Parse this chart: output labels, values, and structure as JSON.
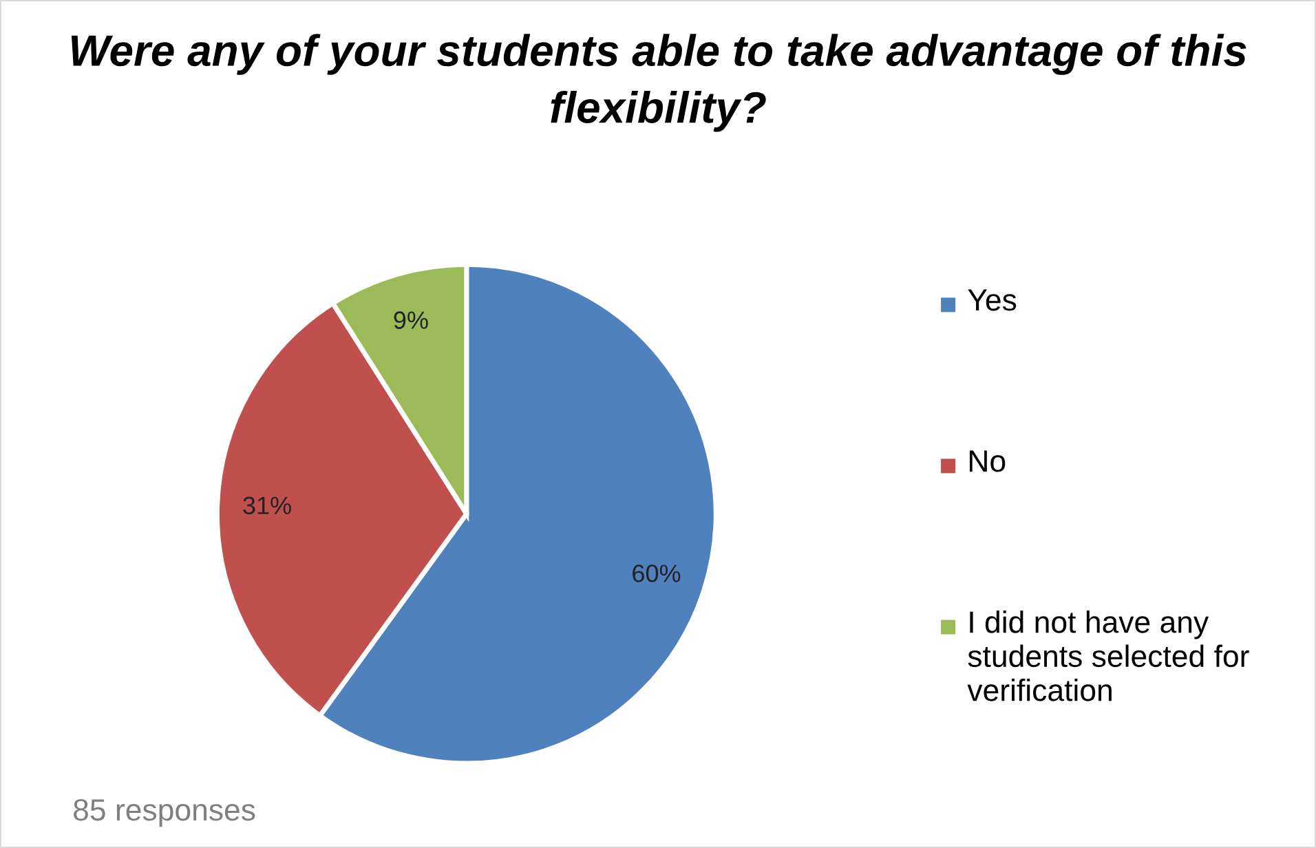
{
  "chart_data": {
    "type": "pie",
    "title": "Were any of your students able to take advantage of this flexibility?",
    "categories": [
      "Yes",
      "No",
      "I did not have any students selected for verification"
    ],
    "values": [
      60,
      31,
      9
    ],
    "colors": [
      "#4f81bd",
      "#c0504d",
      "#9bbb59"
    ],
    "value_labels": [
      "60%",
      "31%",
      "9%"
    ],
    "legend": "right",
    "annotations": [
      "85 responses"
    ]
  }
}
